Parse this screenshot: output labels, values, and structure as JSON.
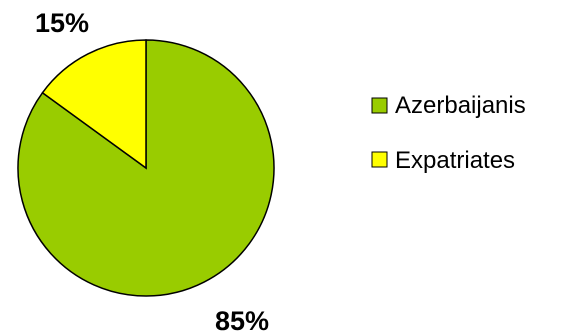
{
  "chart_data": {
    "type": "pie",
    "title": "",
    "slices": [
      {
        "label": "Azerbaijanis",
        "value": 85,
        "display": "85%",
        "color": "#99cc00"
      },
      {
        "label": "Expatriates",
        "value": 15,
        "display": "15%",
        "color": "#ffff00"
      }
    ],
    "legend_position": "right",
    "outline_color": "#000000"
  }
}
